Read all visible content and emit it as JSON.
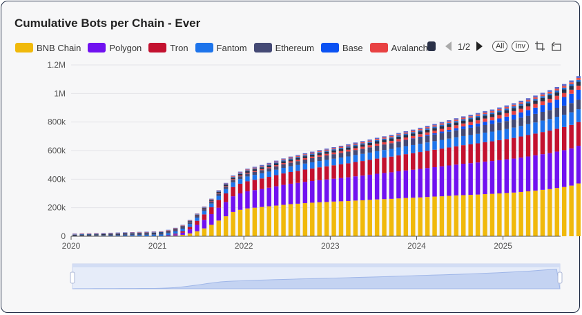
{
  "title": "Cumulative Bots per Chain - Ever",
  "legend": {
    "items": [
      {
        "label": "BNB Chain",
        "color": "#f0b90b"
      },
      {
        "label": "Polygon",
        "color": "#7011f0"
      },
      {
        "label": "Tron",
        "color": "#c3112f"
      },
      {
        "label": "Fantom",
        "color": "#1d74eb"
      },
      {
        "label": "Ethereum",
        "color": "#454a75"
      },
      {
        "label": "Base",
        "color": "#0b52f3"
      },
      {
        "label": "Avalanche",
        "color": "#e84142"
      }
    ],
    "overflow_color": "#2a3148",
    "page_indicator": "1/2",
    "all_button": "All",
    "inv_button": "Inv"
  },
  "chart_data": {
    "type": "bar",
    "stacked": true,
    "title": "Cumulative Bots per Chain - Ever",
    "x_ticks": [
      "2020",
      "2021",
      "2022",
      "2023",
      "2024",
      "2025"
    ],
    "y_ticks": [
      "0",
      "200k",
      "400k",
      "600k",
      "800k",
      "1M",
      "1.2M"
    ],
    "ylim": [
      0,
      1200000
    ],
    "x_start": "2020-01",
    "x_end": "2025-08",
    "grid": true,
    "legend_position": "top",
    "extra_series_colors": [
      "#2a3148",
      "#1f6fd6",
      "#e8524a",
      "#5b6acf"
    ],
    "series": [
      {
        "name": "BNB Chain",
        "color": "#f0b90b",
        "values": [
          0,
          0,
          0,
          0,
          0,
          0,
          0,
          0,
          0,
          0,
          0,
          0,
          0,
          2000,
          5000,
          10000,
          20000,
          35000,
          55000,
          80000,
          110000,
          140000,
          170000,
          185000,
          195000,
          200000,
          205000,
          210000,
          215000,
          220000,
          225000,
          228000,
          232000,
          235000,
          238000,
          240000,
          243000,
          245000,
          247000,
          250000,
          252000,
          255000,
          258000,
          260000,
          262000,
          265000,
          268000,
          270000,
          272000,
          275000,
          278000,
          280000,
          283000,
          286000,
          288000,
          290000,
          292000,
          295000,
          297000,
          300000,
          303000,
          306000,
          310000,
          315000,
          320000,
          325000,
          330000,
          338000,
          345000,
          355000,
          370000,
          385000,
          398000,
          405000
        ]
      },
      {
        "name": "Polygon",
        "color": "#7011f0",
        "values": [
          0,
          0,
          0,
          0,
          0,
          0,
          0,
          0,
          0,
          0,
          0,
          0,
          0,
          3000,
          8000,
          15000,
          28000,
          45000,
          60000,
          75000,
          90000,
          100000,
          110000,
          115000,
          120000,
          123000,
          126000,
          130000,
          135000,
          140000,
          143000,
          146000,
          149000,
          152000,
          155000,
          158000,
          160000,
          163000,
          166000,
          170000,
          173000,
          176000,
          180000,
          183000,
          186000,
          190000,
          193000,
          196000,
          200000,
          203000,
          206000,
          210000,
          213000,
          216000,
          220000,
          222000,
          225000,
          228000,
          230000,
          233000,
          236000,
          238000,
          241000,
          244000,
          247000,
          250000,
          252000,
          255000,
          258000,
          261000,
          264000,
          267000,
          270000,
          273000
        ]
      },
      {
        "name": "Tron",
        "color": "#c3112f",
        "values": [
          0,
          0,
          0,
          0,
          0,
          0,
          0,
          0,
          0,
          0,
          0,
          0,
          0,
          2000,
          5000,
          10000,
          18000,
          28000,
          38000,
          48000,
          55000,
          60000,
          65000,
          68000,
          70000,
          72000,
          74000,
          76000,
          78000,
          80000,
          82000,
          84000,
          86000,
          88000,
          90000,
          92000,
          94000,
          96000,
          98000,
          100000,
          102000,
          104000,
          106000,
          108000,
          110000,
          112000,
          114000,
          116000,
          118000,
          120000,
          122000,
          124000,
          126000,
          128000,
          130000,
          132000,
          134000,
          136000,
          138000,
          140000,
          142000,
          145000,
          148000,
          150000,
          152000,
          155000,
          158000,
          160000,
          162000,
          164000,
          166000,
          168000,
          170000,
          172000
        ]
      },
      {
        "name": "Fantom",
        "color": "#1d74eb",
        "values": [
          2000,
          2500,
          3000,
          3500,
          4000,
          5000,
          6000,
          7000,
          8000,
          9000,
          10000,
          11000,
          12000,
          14000,
          16000,
          18000,
          20000,
          22000,
          24000,
          26000,
          28000,
          30000,
          32000,
          33000,
          34000,
          35000,
          36000,
          37000,
          38000,
          39000,
          40000,
          41000,
          42000,
          43000,
          44000,
          45000,
          46000,
          47000,
          48000,
          49000,
          50000,
          51000,
          52000,
          53000,
          54000,
          55000,
          56000,
          57000,
          58000,
          59000,
          60000,
          61000,
          62000,
          63000,
          64000,
          65000,
          66000,
          67000,
          68000,
          69000,
          70000,
          72000,
          74000,
          76000,
          78000,
          80000,
          82000,
          84000,
          86000,
          88000,
          90000,
          92000,
          94000,
          96000
        ]
      },
      {
        "name": "Ethereum",
        "color": "#454a75",
        "values": [
          3000,
          3500,
          4000,
          4500,
          5000,
          5500,
          6000,
          6500,
          7000,
          7500,
          8000,
          8500,
          9000,
          9500,
          10000,
          11000,
          12000,
          13000,
          14000,
          15000,
          16000,
          17000,
          18000,
          19000,
          20000,
          21000,
          22000,
          23000,
          24000,
          25000,
          26000,
          27000,
          28000,
          29000,
          30000,
          31000,
          32000,
          33000,
          34000,
          35000,
          36000,
          37000,
          38000,
          39000,
          40000,
          41000,
          42000,
          43000,
          44000,
          45000,
          46000,
          47000,
          48000,
          49000,
          50000,
          51000,
          52000,
          53000,
          54000,
          55000,
          56000,
          57000,
          58000,
          59000,
          60000,
          61000,
          62000,
          63000,
          64000,
          65000,
          66000,
          67000,
          68000,
          69000
        ]
      },
      {
        "name": "Base",
        "color": "#0b52f3",
        "values": [
          0,
          0,
          0,
          0,
          0,
          0,
          0,
          0,
          0,
          0,
          0,
          0,
          0,
          0,
          0,
          0,
          0,
          0,
          0,
          0,
          0,
          0,
          0,
          0,
          0,
          0,
          0,
          0,
          0,
          0,
          0,
          0,
          0,
          0,
          0,
          0,
          0,
          0,
          0,
          0,
          0,
          0,
          0,
          0,
          0,
          1000,
          2000,
          3000,
          5000,
          7000,
          9000,
          11000,
          13000,
          15000,
          17000,
          19000,
          21000,
          23000,
          25000,
          28000,
          31000,
          34000,
          37000,
          40000,
          44000,
          48000,
          52000,
          56000,
          60000,
          65000,
          70000,
          75000,
          80000,
          85000
        ]
      },
      {
        "name": "Avalanche",
        "color": "#e84142",
        "values": [
          0,
          0,
          0,
          0,
          0,
          0,
          0,
          0,
          0,
          0,
          0,
          0,
          0,
          500,
          1000,
          1500,
          2000,
          2500,
          3000,
          3500,
          4000,
          4500,
          5000,
          5500,
          6000,
          6500,
          7000,
          7500,
          8000,
          8500,
          9000,
          9500,
          10000,
          10500,
          11000,
          11500,
          12000,
          12500,
          13000,
          13500,
          14000,
          14500,
          15000,
          15500,
          16000,
          16500,
          17000,
          17500,
          18000,
          18500,
          19000,
          19500,
          20000,
          20500,
          21000,
          21500,
          22000,
          22500,
          23000,
          23500,
          24000,
          24500,
          25000,
          25500,
          26000,
          26500,
          27000,
          27500,
          28000,
          28500,
          29000,
          29500,
          30000,
          30500
        ]
      }
    ]
  }
}
